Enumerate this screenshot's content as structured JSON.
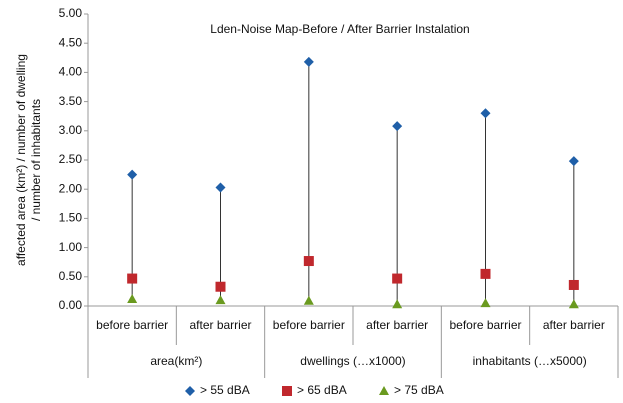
{
  "chart_data": {
    "type": "hilo",
    "title": "Lden-Noise Map-Before / After Barrier Instalation",
    "y_label": [
      "affected area (km²) / number of dwelling",
      "/ number  of inhabitants"
    ],
    "categories": [
      "before barrier",
      "after barrier",
      "before barrier",
      "after barrier",
      "before barrier",
      "after barrier"
    ],
    "groups": [
      "area(km²)",
      "dwellings (…x1000)",
      "inhabitants (…x5000)"
    ],
    "series": [
      {
        "name": "> 55 dBA",
        "color": "#1f5fa8",
        "marker": "diamond",
        "values": [
          2.25,
          2.03,
          4.18,
          3.08,
          3.3,
          2.48
        ]
      },
      {
        "name": "> 65 dBA",
        "color": "#c0282d",
        "marker": "square",
        "values": [
          0.47,
          0.33,
          0.77,
          0.47,
          0.55,
          0.36
        ]
      },
      {
        "name": "> 75 dBA",
        "color": "#6a9a1f",
        "marker": "triangle",
        "values": [
          0.12,
          0.1,
          0.09,
          0.03,
          0.05,
          0.03
        ]
      }
    ],
    "ylim": [
      0,
      5
    ],
    "yticks": [
      {
        "value": 0,
        "label": "0.00"
      },
      {
        "value": 0.5,
        "label": "0.50"
      },
      {
        "value": 1,
        "label": "1.00"
      },
      {
        "value": 1.5,
        "label": "1.50"
      },
      {
        "value": 2,
        "label": "2.00"
      },
      {
        "value": 2.5,
        "label": "2.50"
      },
      {
        "value": 3,
        "label": "3.00"
      },
      {
        "value": 3.5,
        "label": "3.50"
      },
      {
        "value": 4,
        "label": "4.00"
      },
      {
        "value": 4.5,
        "label": "4.50"
      },
      {
        "value": 5,
        "label": "5.00"
      }
    ],
    "grid": false,
    "legend": "bottom"
  }
}
